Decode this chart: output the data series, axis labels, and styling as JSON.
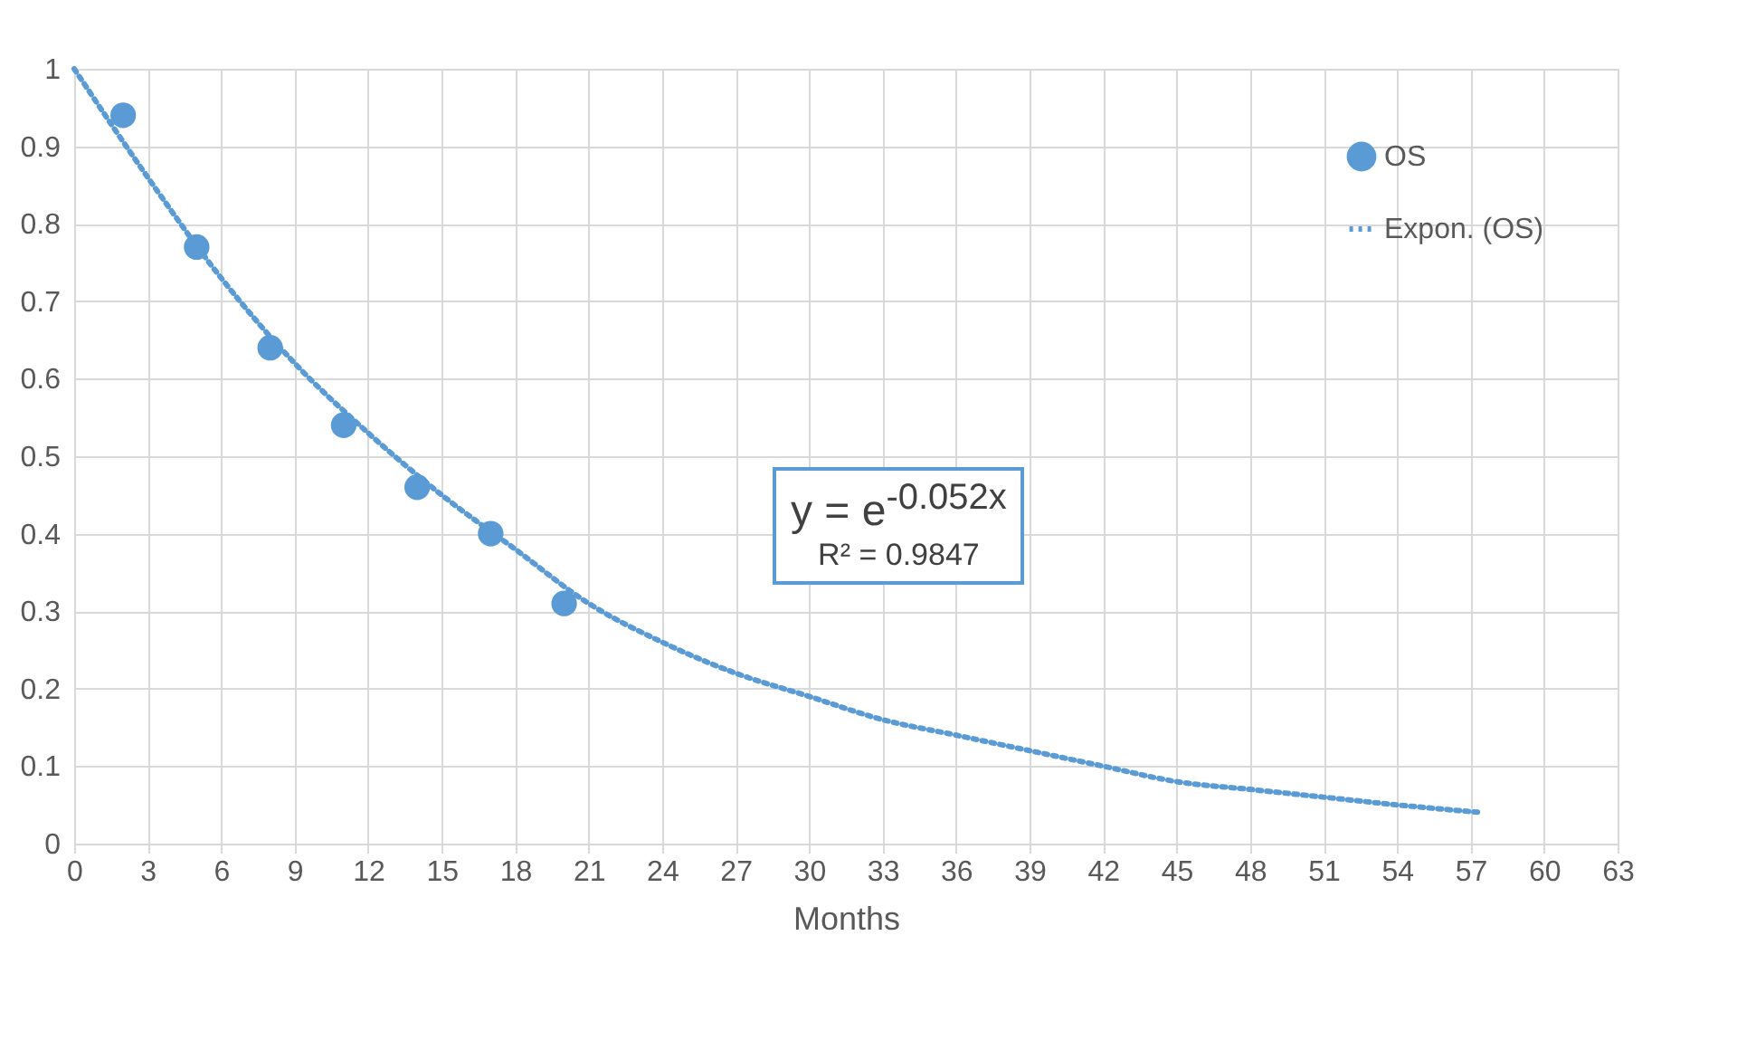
{
  "chart_data": {
    "type": "scatter",
    "xlabel": "Months",
    "series": [
      {
        "name": "OS",
        "color": "#5b9bd5",
        "marker": "circle",
        "x": [
          2,
          5,
          8,
          11,
          14,
          17,
          20
        ],
        "values": [
          0.94,
          0.77,
          0.64,
          0.54,
          0.46,
          0.4,
          0.31
        ]
      },
      {
        "name": "Expon. (OS)",
        "type": "line",
        "color": "#5b9bd5",
        "line_style": "dotted",
        "x": [
          0,
          3,
          6,
          9,
          12,
          15,
          18,
          21,
          24,
          27,
          30,
          33,
          36,
          39,
          42,
          45,
          48,
          51,
          54,
          57.5
        ],
        "values": [
          1,
          0.86,
          0.73,
          0.62,
          0.53,
          0.45,
          0.38,
          0.31,
          0.26,
          0.22,
          0.19,
          0.16,
          0.14,
          0.12,
          0.1,
          0.08,
          0.07,
          0.06,
          0.05,
          0.04
        ]
      }
    ],
    "xlim": [
      0,
      63
    ],
    "xticks": [
      0,
      3,
      6,
      9,
      12,
      15,
      18,
      21,
      24,
      27,
      30,
      33,
      36,
      39,
      42,
      45,
      48,
      51,
      54,
      57,
      60,
      63
    ],
    "ylim": [
      0,
      1
    ],
    "yticks": [
      0,
      0.1,
      0.2,
      0.3,
      0.4,
      0.5,
      0.6,
      0.7,
      0.8,
      0.9,
      1
    ],
    "grid": true,
    "legend": "top right",
    "annotations": [
      "y = e$^{-0.052x}$",
      "R² = 0.9847"
    ]
  }
}
